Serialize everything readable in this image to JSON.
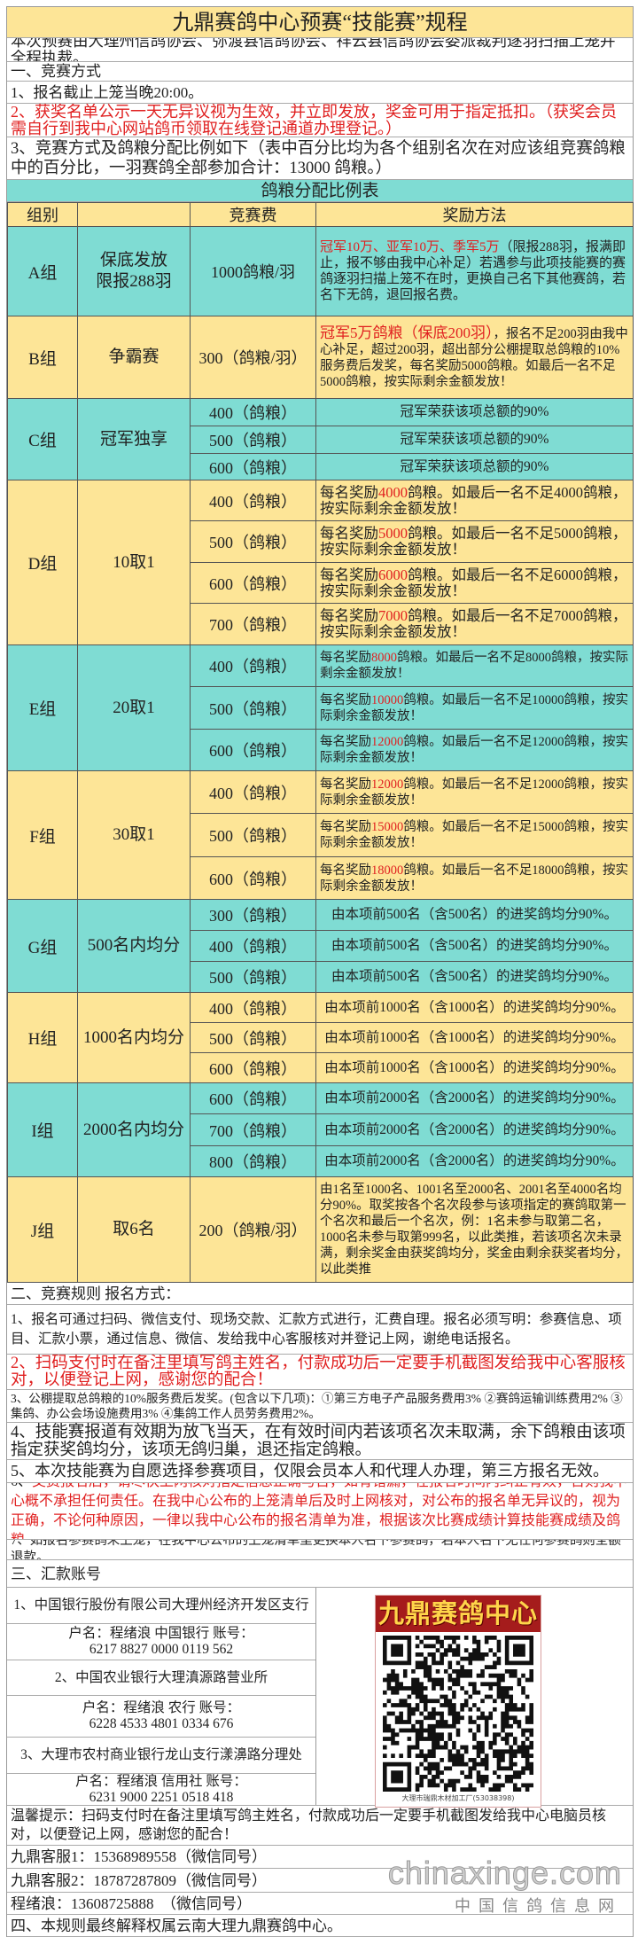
{
  "title": "九鼎赛鸽中心预赛“技能赛”规程",
  "intro": "本次预赛由大理州信鸽协会、弥渡县信鸽协会、祥云县信鸽协会委派裁判逐羽扫描上笼并全程执裁。",
  "section1": {
    "heading": "一、竞赛方式",
    "items": [
      "1、报名截止上笼当晚20:00。",
      "2、获奖名单公示一天无异议视为生效，并立即发放，奖金可用于指定抵扣。（获奖会员需自行到我中心网站鸽币领取在线登记通道办理登记。）",
      "3、竞赛方式及鸽粮分配比例如下（表中百分比均为各个组别名次在对应该组竞赛鸽粮中的百分比，一羽赛鸽全部参加合计：13000 鸽粮。）"
    ]
  },
  "table": {
    "caption": "鸽粮分配比例表",
    "headers": [
      "组别",
      "竞赛费",
      "奖励方法"
    ],
    "groups": [
      {
        "group": "A组",
        "name": "保底发放\n限报288羽",
        "color": "teal",
        "align": "left",
        "rows": [
          {
            "fee": "1000鸽粮/羽",
            "reward": [
              {
                "t": "冠军10万、亚军10万、季军5万",
                "red": true
              },
              {
                "t": "（限报288羽，报满即止，报不够由我中心补足）若遇参与此项技能赛的赛鸽逐羽扫描上笼不在时，更换自己名下其他赛鸽，若名下无鸽，退回报名费。"
              }
            ]
          }
        ]
      },
      {
        "group": "B组",
        "name": "争霸赛",
        "color": "yellow",
        "align": "left",
        "rows": [
          {
            "fee": "300（鸽粮/羽）",
            "reward": [
              {
                "t": "冠军5万鸽粮（保底200羽）",
                "red": true
              },
              {
                "t": "，报名不足200羽由我中心补足，超过200羽，超出部分公棚提取总鸽粮的10%服务费后发奖，每名奖励5000鸽粮。如最后一名不足5000鸽粮，按实际剩余金额发放！"
              }
            ]
          }
        ]
      },
      {
        "group": "C组",
        "name": "冠军独享",
        "color": "teal",
        "align": "center",
        "rows": [
          {
            "fee": "400（鸽粮）",
            "reward": [
              {
                "t": "冠军荣获该项总额的90%"
              }
            ]
          },
          {
            "fee": "500（鸽粮）",
            "reward": [
              {
                "t": "冠军荣获该项总额的90%"
              }
            ]
          },
          {
            "fee": "600（鸽粮）",
            "reward": [
              {
                "t": "冠军荣获该项总额的90%"
              }
            ]
          }
        ]
      },
      {
        "group": "D组",
        "name": "10取1",
        "color": "yellow",
        "align": "left",
        "rows": [
          {
            "fee": "400（鸽粮）",
            "reward": [
              {
                "t": "每名奖励"
              },
              {
                "t": "4000",
                "red": true
              },
              {
                "t": "鸽粮。如最后一名不足4000鸽粮，按实际剩余金额发放！"
              }
            ]
          },
          {
            "fee": "500（鸽粮）",
            "reward": [
              {
                "t": "每名奖励"
              },
              {
                "t": "5000",
                "red": true
              },
              {
                "t": "鸽粮。如最后一名不足5000鸽粮，按实际剩余金额发放！"
              }
            ]
          },
          {
            "fee": "600（鸽粮）",
            "reward": [
              {
                "t": "每名奖励"
              },
              {
                "t": "6000",
                "red": true
              },
              {
                "t": "鸽粮。如最后一名不足6000鸽粮，按实际剩余金额发放！"
              }
            ]
          },
          {
            "fee": "700（鸽粮）",
            "reward": [
              {
                "t": "每名奖励"
              },
              {
                "t": "7000",
                "red": true
              },
              {
                "t": "鸽粮。如最后一名不足7000鸽粮，按实际剩余金额发放！"
              }
            ]
          }
        ]
      },
      {
        "group": "E组",
        "name": "20取1",
        "color": "teal",
        "align": "left",
        "rows": [
          {
            "fee": "400（鸽粮）",
            "reward": [
              {
                "t": "每名奖励"
              },
              {
                "t": "8000",
                "red": true
              },
              {
                "t": "鸽粮。如最后一名不足8000鸽粮，按实际剩余金额发放！"
              }
            ]
          },
          {
            "fee": "500（鸽粮）",
            "reward": [
              {
                "t": "每名奖励"
              },
              {
                "t": "10000",
                "red": true
              },
              {
                "t": "鸽粮。如最后一名不足10000鸽粮，按实际剩余金额发放！"
              }
            ]
          },
          {
            "fee": "600（鸽粮）",
            "reward": [
              {
                "t": "每名奖励"
              },
              {
                "t": "12000",
                "red": true
              },
              {
                "t": "鸽粮。如最后一名不足12000鸽粮，按实际剩余金额发放！"
              }
            ]
          }
        ]
      },
      {
        "group": "F组",
        "name": "30取1",
        "color": "yellow",
        "align": "left",
        "rows": [
          {
            "fee": "400（鸽粮）",
            "reward": [
              {
                "t": "每名奖励"
              },
              {
                "t": "12000",
                "red": true
              },
              {
                "t": "鸽粮。如最后一名不足12000鸽粮，按实际剩余金额发放！"
              }
            ]
          },
          {
            "fee": "500（鸽粮）",
            "reward": [
              {
                "t": "每名奖励"
              },
              {
                "t": "15000",
                "red": true
              },
              {
                "t": "鸽粮。如最后一名不足15000鸽粮，按实际剩余金额发放！"
              }
            ]
          },
          {
            "fee": "600（鸽粮）",
            "reward": [
              {
                "t": "每名奖励"
              },
              {
                "t": "18000",
                "red": true
              },
              {
                "t": "鸽粮。如最后一名不足18000鸽粮，按实际剩余金额发放！"
              }
            ]
          }
        ]
      },
      {
        "group": "G组",
        "name": "500名内均分",
        "color": "teal",
        "align": "center",
        "rows": [
          {
            "fee": "300（鸽粮）",
            "reward": [
              {
                "t": "由本项前500名（含500名）的进奖鸽均分90%。"
              }
            ]
          },
          {
            "fee": "400（鸽粮）",
            "reward": [
              {
                "t": "由本项前500名（含500名）的进奖鸽均分90%。"
              }
            ]
          },
          {
            "fee": "500（鸽粮）",
            "reward": [
              {
                "t": "由本项前500名（含500名）的进奖鸽均分90%。"
              }
            ]
          }
        ]
      },
      {
        "group": "H组",
        "name": "1000名内均分",
        "color": "yellow",
        "align": "center",
        "rows": [
          {
            "fee": "400（鸽粮）",
            "reward": [
              {
                "t": "由本项前1000名（含1000名）的进奖鸽均分90%。"
              }
            ]
          },
          {
            "fee": "500（鸽粮）",
            "reward": [
              {
                "t": "由本项前1000名（含1000名）的进奖鸽均分90%。"
              }
            ]
          },
          {
            "fee": "600（鸽粮）",
            "reward": [
              {
                "t": "由本项前1000名（含1000名）的进奖鸽均分90%。"
              }
            ]
          }
        ]
      },
      {
        "group": "I组",
        "name": "2000名内均分",
        "color": "teal",
        "align": "center",
        "rows": [
          {
            "fee": "600（鸽粮）",
            "reward": [
              {
                "t": "由本项前2000名（含2000名）的进奖鸽均分90%。"
              }
            ]
          },
          {
            "fee": "700（鸽粮）",
            "reward": [
              {
                "t": "由本项前2000名（含2000名）的进奖鸽均分90%。"
              }
            ]
          },
          {
            "fee": "800（鸽粮）",
            "reward": [
              {
                "t": "由本项前2000名（含2000名）的进奖鸽均分90%。"
              }
            ]
          }
        ]
      },
      {
        "group": "J组",
        "name": "取6名",
        "color": "yellow",
        "align": "left",
        "rows": [
          {
            "fee": "200（鸽粮/羽）",
            "reward": [
              {
                "t": "由1名至1000名、1001名至2000名、2001名至4000名均分90%。取奖按各个名次段参与该项指定的赛鸽取第一个名次和最后一个名次，例：1名未参与取第二名，1000名未参与取第999名，以此类推，若该项名次未录满，剩余奖金由获奖鸽均分，奖金由剩余获奖者均分，以此类推"
              }
            ]
          }
        ]
      }
    ]
  },
  "section2": {
    "heading": "二、竞赛规则 报名方式：",
    "items": [
      [
        {
          "t": "1、报名可通过扫码、微信支付、现场交款、汇款方式进行，汇费自理。报名必须写明：参赛信息、项目、汇款小票，通过信息、微信、发给我中心客服核对并登记上网，谢绝电话报名。"
        }
      ],
      [
        {
          "t": "2、扫码支付时在备注里填写鸽主姓名，付款成功后一定要手机截图发给我中心客服核对，以便登记上网，感谢您的配合！",
          "red": true
        }
      ],
      [
        {
          "t": "3、公棚提取总鸽粮的10%服务费后发奖。(包含以下几项)：①第三方电子产品服务费用3% ②赛鸽运输训练费用2% ③集鸽、办公会场设施费用3% ④集鸽工作人员劳务费用2%。"
        }
      ],
      [
        {
          "t": "4、技能赛报道有效期为放飞当天，在有效时间内若该项名次未取满，余下鸽粮由该项指定获奖鸽均分，该项无鸽归巢，退还指定鸽粮。"
        }
      ],
      [
        {
          "t": "5、本次技能赛为自愿选择参赛项目，仅限会员本人和代理人办理，第三方报名无效。"
        }
      ],
      [
        {
          "t": "6、"
        },
        {
          "t": "交费报名后，请尽快上网核对指定信息正确与否，如有错漏，在报名时间内纠正有效，否则我中心概不承担任何责任。在我中心公布的上笼清单后及时上网核对，对公布的报名单无异议的，视为正确，不论何种原因，一律以我中心公布的报名清单为准，根据该次比赛成绩计算技能赛成绩及鸽粮。",
          "red": true
        }
      ],
      [
        {
          "t": "7、如报名参赛鸽未上笼，在我中心公布的上笼清单里更换本人名下参赛鸽，若本人名下无任何参赛鸽则全额退款。"
        }
      ]
    ]
  },
  "section3": {
    "heading": "三、汇款账号",
    "banks": [
      {
        "name": "1、中国银行股份有限公司大理州经济开发区支行",
        "holder": "户名：程绪浪 中国银行 账号：",
        "account": "6217 8827 0000 0119 562"
      },
      {
        "name": "2、中国农业银行大理滇源路营业所",
        "holder": "户名：程绪浪 农行 账号：",
        "account": "6228 4533 4801 0334 676"
      },
      {
        "name": "3、大理市农村商业银行龙山支行漾濞路分理处",
        "holder": "户名：程绪浪 信用社 账号：",
        "account": "6231 9000 2251 0518 418"
      }
    ],
    "qr": {
      "banner": "九鼎赛鸽中心",
      "caption": "大理市瑞鼎木材加工厂(53038398)"
    }
  },
  "tip": "温馨提示：扫码支付时在备注里填写鸽主姓名，付款成功后一定要手机截图发给我中心电脑员核对，以便登记上网，感谢您的配合！",
  "contacts": [
    "九鼎客服1：15368989558（微信同号）",
    "九鼎客服2：18787287809（微信同号）",
    "程绪浪：13608725888　（微信同号）"
  ],
  "final": "四、本规则最终解释权属云南大理九鼎赛鸽中心。",
  "watermark": {
    "line1": "chinaxinge.com",
    "line2": "中国信鸽信息网"
  },
  "colors": {
    "yellow": "#fde597",
    "teal": "#7fdcd3",
    "red": "#e02020"
  }
}
